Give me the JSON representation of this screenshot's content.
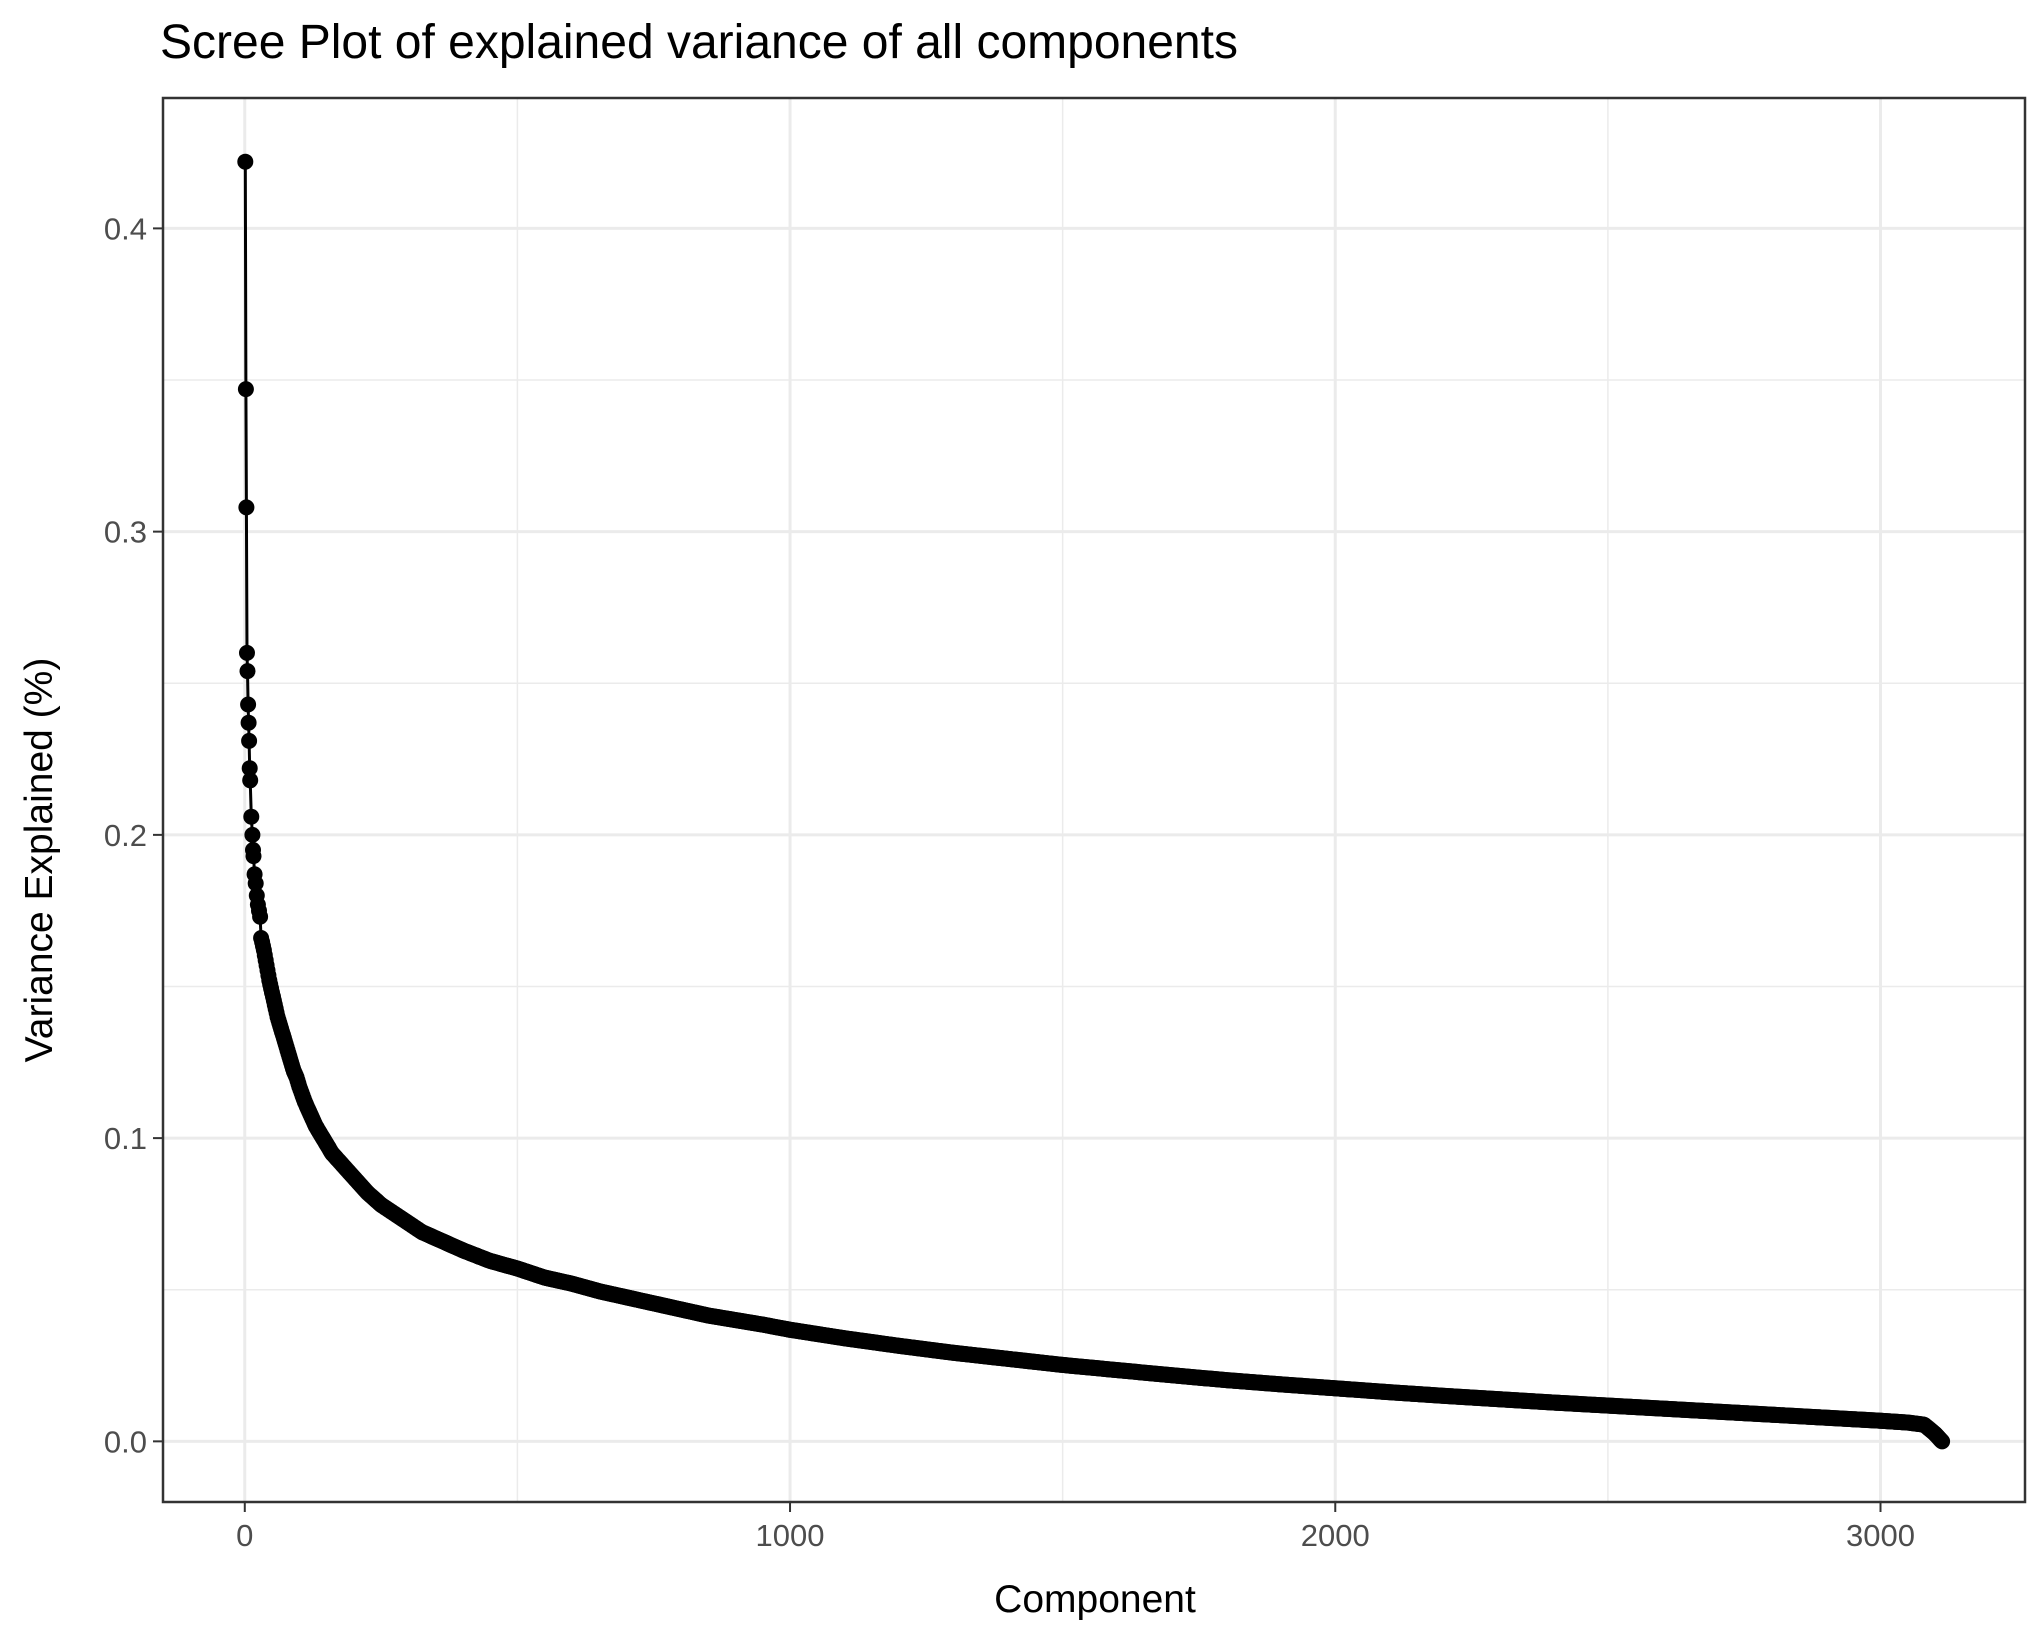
{
  "chart_data": {
    "type": "line",
    "title": "Scree Plot of explained variance of all components",
    "xlabel": "Component",
    "ylabel": "Variance Explained (%)",
    "xlim": [
      -150,
      3265
    ],
    "ylim": [
      -0.02,
      0.443
    ],
    "x_ticks": [
      0,
      1000,
      2000,
      3000
    ],
    "x_tick_labels": [
      "0",
      "1000",
      "2000",
      "3000"
    ],
    "y_ticks": [
      0.0,
      0.1,
      0.2,
      0.3,
      0.4
    ],
    "y_tick_labels": [
      "0.0",
      "0.1",
      "0.2",
      "0.3",
      "0.4"
    ],
    "x_minor_ticks": [
      500,
      1500,
      2500
    ],
    "y_minor_ticks": [
      0.05,
      0.15,
      0.25,
      0.35
    ],
    "grid": true,
    "legend": "none",
    "series": [
      {
        "color": "#000000",
        "marker": "circle",
        "points": [
          [
            1,
            0.422
          ],
          [
            2,
            0.347
          ],
          [
            3,
            0.308
          ],
          [
            4,
            0.26
          ],
          [
            5,
            0.254
          ],
          [
            6,
            0.243
          ],
          [
            7,
            0.237
          ],
          [
            8,
            0.231
          ],
          [
            9,
            0.222
          ],
          [
            10,
            0.218
          ],
          [
            12,
            0.206
          ],
          [
            14,
            0.2
          ],
          [
            15,
            0.195
          ],
          [
            16,
            0.193
          ],
          [
            18,
            0.187
          ],
          [
            20,
            0.184
          ],
          [
            22,
            0.18
          ],
          [
            24,
            0.177
          ],
          [
            26,
            0.175
          ],
          [
            28,
            0.173
          ],
          [
            30,
            0.166
          ],
          [
            35,
            0.162
          ],
          [
            40,
            0.157
          ],
          [
            45,
            0.152
          ],
          [
            50,
            0.148
          ],
          [
            55,
            0.144
          ],
          [
            60,
            0.14
          ],
          [
            65,
            0.137
          ],
          [
            70,
            0.134
          ],
          [
            75,
            0.131
          ],
          [
            80,
            0.128
          ],
          [
            85,
            0.125
          ],
          [
            90,
            0.122
          ],
          [
            95,
            0.12
          ],
          [
            100,
            0.117
          ],
          [
            110,
            0.112
          ],
          [
            120,
            0.108
          ],
          [
            130,
            0.104
          ],
          [
            140,
            0.101
          ],
          [
            150,
            0.098
          ],
          [
            160,
            0.095
          ],
          [
            175,
            0.092
          ],
          [
            200,
            0.087
          ],
          [
            225,
            0.082
          ],
          [
            250,
            0.078
          ],
          [
            275,
            0.075
          ],
          [
            300,
            0.072
          ],
          [
            325,
            0.069
          ],
          [
            350,
            0.067
          ],
          [
            375,
            0.065
          ],
          [
            400,
            0.063
          ],
          [
            450,
            0.0595
          ],
          [
            500,
            0.057
          ],
          [
            550,
            0.054
          ],
          [
            600,
            0.052
          ],
          [
            650,
            0.0495
          ],
          [
            700,
            0.0475
          ],
          [
            750,
            0.0455
          ],
          [
            800,
            0.0435
          ],
          [
            850,
            0.0415
          ],
          [
            900,
            0.04
          ],
          [
            950,
            0.0385
          ],
          [
            1000,
            0.0368
          ],
          [
            1100,
            0.034
          ],
          [
            1200,
            0.0315
          ],
          [
            1300,
            0.0292
          ],
          [
            1400,
            0.0272
          ],
          [
            1500,
            0.0252
          ],
          [
            1600,
            0.0235
          ],
          [
            1700,
            0.0218
          ],
          [
            1800,
            0.0202
          ],
          [
            1900,
            0.0188
          ],
          [
            2000,
            0.0175
          ],
          [
            2100,
            0.0162
          ],
          [
            2200,
            0.015
          ],
          [
            2300,
            0.0139
          ],
          [
            2400,
            0.0128
          ],
          [
            2500,
            0.0118
          ],
          [
            2600,
            0.0108
          ],
          [
            2700,
            0.0098
          ],
          [
            2800,
            0.0088
          ],
          [
            2900,
            0.0078
          ],
          [
            3000,
            0.0068
          ],
          [
            3050,
            0.0062
          ],
          [
            3080,
            0.0055
          ],
          [
            3090,
            0.004
          ],
          [
            3100,
            0.0025
          ],
          [
            3105,
            0.0015
          ],
          [
            3110,
            0.0005
          ],
          [
            3113,
            0.0
          ]
        ]
      }
    ]
  }
}
